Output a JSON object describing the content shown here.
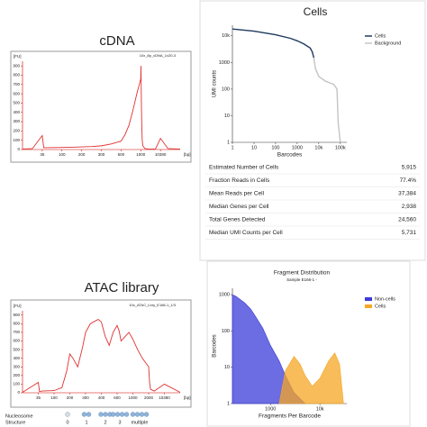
{
  "chart_data": [
    {
      "type": "line",
      "title": "cDNA",
      "sample_label": "10x_8p_cDNA_1x20-3",
      "ylabel": "[FU]",
      "xlabel": "[bp]",
      "color": "#e03030",
      "x": [
        25,
        30,
        35,
        40,
        50,
        100,
        150,
        200,
        250,
        300,
        400,
        500,
        600,
        700,
        800,
        900,
        1000,
        1100,
        1200,
        1300,
        1500,
        1700,
        2000,
        3000,
        5000,
        8000,
        10380,
        11000,
        12000
      ],
      "values": [
        5,
        10,
        150,
        20,
        20,
        22,
        25,
        28,
        32,
        40,
        60,
        90,
        160,
        260,
        420,
        600,
        760,
        900,
        700,
        500,
        250,
        100,
        40,
        10,
        5,
        5,
        120,
        10,
        5
      ],
      "xlim": [
        25,
        12000
      ],
      "xticks": [
        35,
        100,
        200,
        300,
        500,
        1000,
        10380
      ],
      "ylim": [
        0,
        950
      ],
      "yticks": [
        0,
        100,
        200,
        300,
        400,
        500,
        600,
        700,
        800,
        900
      ]
    },
    {
      "type": "line",
      "title": "Cells",
      "xlabel": "Barcodes",
      "ylabel": "UMI counts",
      "xscale": "log",
      "yscale": "log",
      "legend": "top-right",
      "series": [
        {
          "name": "Cells",
          "color": "#1f3a5f",
          "x": [
            1,
            10,
            100,
            500,
            1000,
            2000,
            4000,
            5000,
            5915
          ],
          "values": [
            18000,
            15000,
            11000,
            8000,
            6500,
            5000,
            3500,
            2500,
            1500
          ]
        },
        {
          "name": "Background",
          "color": "#c4c4c4",
          "x": [
            5915,
            7000,
            10000,
            20000,
            50000,
            70000,
            80000,
            100000
          ],
          "values": [
            1500,
            600,
            300,
            200,
            150,
            100,
            5,
            1
          ]
        }
      ],
      "xlim": [
        1,
        200000
      ],
      "xticks": [
        1,
        10,
        100,
        1000,
        {
          "value": 10000,
          "label": "10k"
        },
        {
          "value": 100000,
          "label": "100k"
        }
      ],
      "ylim": [
        1,
        25000
      ],
      "yticks": [
        1,
        10,
        100,
        1000,
        {
          "value": 10000,
          "label": "10k"
        }
      ]
    },
    {
      "type": "line",
      "title": "ATAC library",
      "sample_label": "10x_ATAC_Lbry_E166-1_1/3",
      "ylabel": "[FU]",
      "xlabel": "[bp]",
      "color": "#e03030",
      "x": [
        25,
        35,
        40,
        50,
        100,
        150,
        180,
        200,
        220,
        250,
        280,
        300,
        330,
        380,
        400,
        450,
        500,
        550,
        600,
        650,
        700,
        800,
        900,
        1000,
        1300,
        1600,
        2000,
        2500,
        3000,
        5000,
        10380,
        12000
      ],
      "values": [
        5,
        120,
        15,
        20,
        25,
        60,
        250,
        450,
        400,
        300,
        520,
        700,
        800,
        850,
        820,
        650,
        550,
        700,
        780,
        720,
        600,
        650,
        700,
        620,
        500,
        400,
        300,
        120,
        40,
        20,
        100,
        5
      ],
      "xlim": [
        25,
        12000
      ],
      "xticks": [
        35,
        100,
        200,
        300,
        400,
        600,
        1000,
        2000,
        10380
      ],
      "ylim": [
        0,
        950
      ],
      "yticks": [
        0,
        100,
        200,
        300,
        400,
        500,
        600,
        700,
        800,
        900
      ]
    },
    {
      "type": "area",
      "title": "Fragment Distribution",
      "subtitle": "Sample E166-1 -",
      "xlabel": "Fragments Per Barcode",
      "ylabel": "Barcodes",
      "xscale": "log",
      "yscale": "log",
      "legend": "top-right",
      "series": [
        {
          "name": "Non-cells",
          "color": "#3b3bd9",
          "x": [
            170,
            200,
            300,
            400,
            500,
            700,
            1000,
            1500,
            2000,
            3000,
            5000
          ],
          "values": [
            1000,
            900,
            600,
            400,
            250,
            120,
            40,
            15,
            6,
            2,
            1
          ]
        },
        {
          "name": "Cells",
          "color": "#f5a623",
          "x": [
            1500,
            2000,
            3000,
            4000,
            5000,
            7000,
            10000,
            15000,
            20000,
            25000,
            30000
          ],
          "values": [
            1,
            8,
            20,
            12,
            6,
            3,
            5,
            15,
            25,
            12,
            1
          ]
        }
      ],
      "xlim": [
        170,
        35000
      ],
      "xticks": [
        1000,
        {
          "value": 10000,
          "label": "10k"
        }
      ],
      "ylim": [
        1,
        1500
      ],
      "yticks": [
        1,
        10,
        100,
        1000
      ]
    }
  ],
  "metrics": {
    "rows": [
      [
        "Estimated Number of Cells",
        "5,915"
      ],
      [
        "Fraction Reads in Cells",
        "77.4%"
      ],
      [
        "Mean Reads per Cell",
        "37,384"
      ],
      [
        "Median Genes per Cell",
        "2,938"
      ],
      [
        "Total Genes Detected",
        "24,560"
      ],
      [
        "Median UMI Counts per Cell",
        "5,731"
      ]
    ]
  },
  "nucleosome": {
    "label": [
      "Nucleosome",
      "Structure"
    ],
    "steps": [
      "0",
      "1",
      "2",
      "3",
      "multiple"
    ]
  }
}
